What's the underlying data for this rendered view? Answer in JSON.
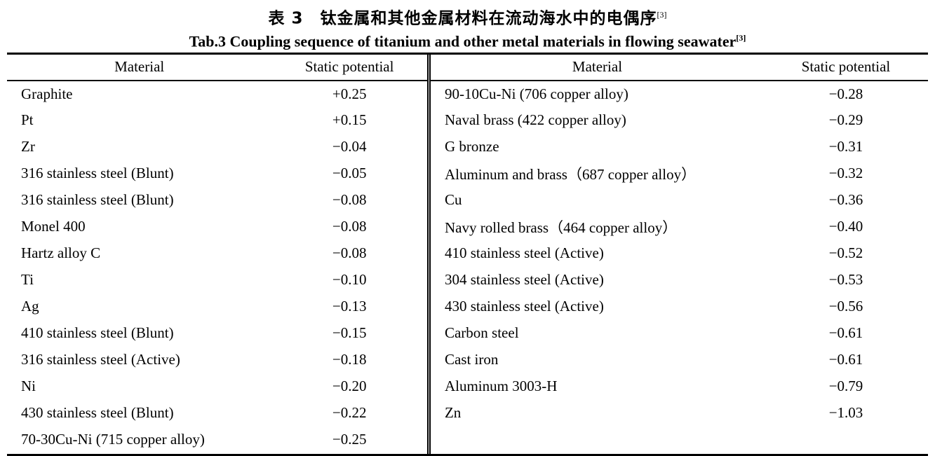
{
  "titles": {
    "chinese": "表 3　钛金属和其他金属材料在流动海水中的电偶序",
    "chinese_ref": "[3]",
    "english": "Tab.3 Coupling sequence of titanium and other metal materials in flowing seawater",
    "english_ref": "[3]"
  },
  "table": {
    "left": {
      "header": {
        "material": "Material",
        "potential": "Static potential"
      },
      "rows": [
        {
          "material": "Graphite",
          "potential": "+0.25"
        },
        {
          "material": "Pt",
          "potential": "+0.15"
        },
        {
          "material": "Zr",
          "potential": "−0.04"
        },
        {
          "material": "316 stainless steel (Blunt)",
          "potential": "−0.05"
        },
        {
          "material": "316 stainless steel (Blunt)",
          "potential": "−0.08"
        },
        {
          "material": "Monel 400",
          "potential": "−0.08"
        },
        {
          "material": "Hartz alloy C",
          "potential": "−0.08"
        },
        {
          "material": "Ti",
          "potential": "−0.10"
        },
        {
          "material": "Ag",
          "potential": "−0.13"
        },
        {
          "material": "410 stainless steel (Blunt)",
          "potential": "−0.15"
        },
        {
          "material": "316 stainless steel (Active)",
          "potential": "−0.18"
        },
        {
          "material": "Ni",
          "potential": "−0.20"
        },
        {
          "material": "430 stainless steel (Blunt)",
          "potential": "−0.22"
        },
        {
          "material": "70-30Cu-Ni (715 copper alloy)",
          "potential": "−0.25"
        }
      ]
    },
    "right": {
      "header": {
        "material": "Material",
        "potential": "Static potential"
      },
      "rows": [
        {
          "material": "90-10Cu-Ni (706 copper alloy)",
          "potential": "−0.28"
        },
        {
          "material": "Naval brass (422 copper alloy)",
          "potential": "−0.29"
        },
        {
          "material": "G bronze",
          "potential": "−0.31"
        },
        {
          "material": "Aluminum and brass（687 copper alloy）",
          "potential": "−0.32"
        },
        {
          "material": "Cu",
          "potential": "−0.36"
        },
        {
          "material": "Navy rolled brass（464 copper alloy）",
          "potential": "−0.40"
        },
        {
          "material": "410 stainless steel (Active)",
          "potential": "−0.52"
        },
        {
          "material": "304 stainless steel (Active)",
          "potential": "−0.53"
        },
        {
          "material": "430 stainless steel (Active)",
          "potential": "−0.56"
        },
        {
          "material": "Carbon steel",
          "potential": "−0.61"
        },
        {
          "material": "Cast iron",
          "potential": "−0.61"
        },
        {
          "material": "Aluminum 3003-H",
          "potential": "−0.79"
        },
        {
          "material": "Zn",
          "potential": "−1.03"
        }
      ]
    }
  },
  "colors": {
    "text": "#000000",
    "background": "#ffffff",
    "rule": "#000000"
  }
}
